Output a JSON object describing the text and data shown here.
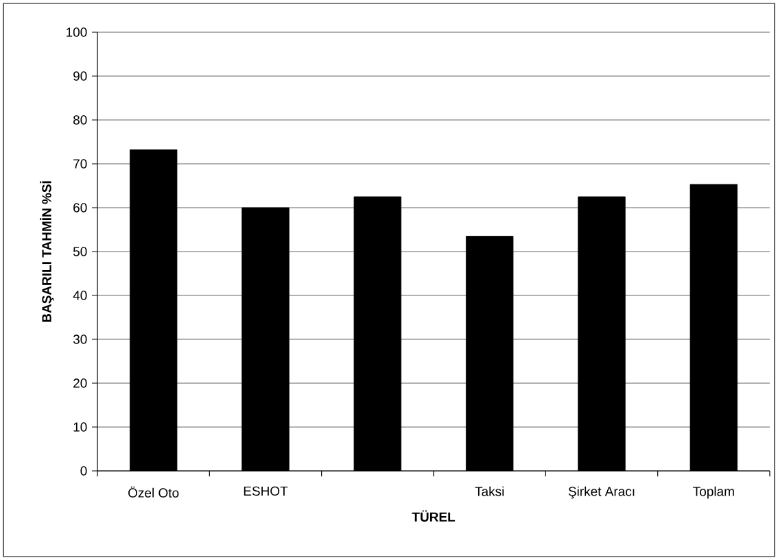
{
  "chart_data": {
    "type": "bar",
    "xlabel": "TÜREL",
    "ylabel": "BAŞARILI TAHMİN %Sİ",
    "categories": [
      "Özel Oto",
      "ESHOT",
      null,
      "Taksi",
      "Şirket Aracı",
      "Toplam"
    ],
    "values": [
      73.2,
      60,
      62.5,
      53.5,
      62.5,
      65.3
    ],
    "color": "#000000",
    "ylim": [
      0,
      100
    ],
    "yticks": [
      0,
      10,
      20,
      30,
      40,
      50,
      60,
      70,
      80,
      90,
      100
    ],
    "grid": "y"
  }
}
